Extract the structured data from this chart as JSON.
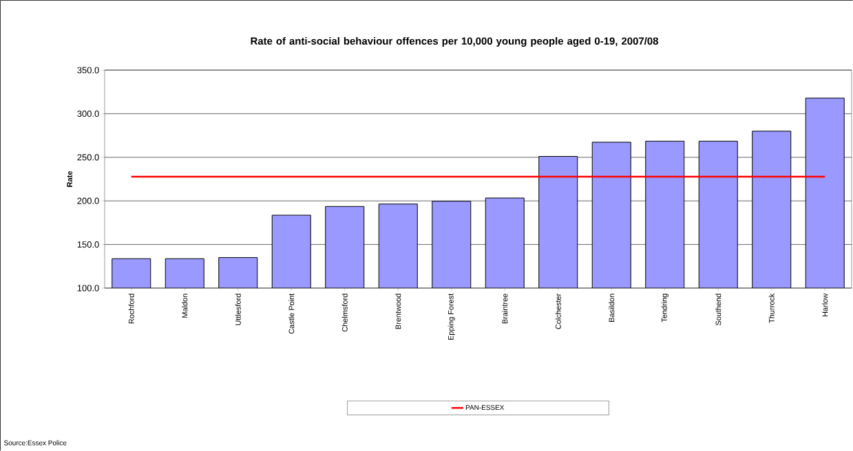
{
  "chart_data": {
    "type": "bar",
    "title": "Rate of anti-social behaviour offences per 10,000 young people aged 0-19, 2007/08",
    "ylabel": "Rate",
    "categories": [
      "Rochford",
      "Maldon",
      "Uttlesford",
      "Castle Point",
      "Chelmsford",
      "Brentwood",
      "Epping Forest",
      "Braintree",
      "Colchester",
      "Basildon",
      "Tendring",
      "Southend",
      "Thurrock",
      "Harlow"
    ],
    "series": [
      {
        "color": "#9999ff",
        "values": [
          133.7,
          133.7,
          135.0,
          183.6,
          193.6,
          196.4,
          199.6,
          203.3,
          251.0,
          267.3,
          268.5,
          268.5,
          280.0,
          317.9
        ]
      },
      {
        "name": "PAN-ESSEX",
        "type": "line",
        "color": "#ff0000",
        "values": [
          227.7,
          227.7,
          227.7,
          227.7,
          227.7,
          227.7,
          227.7,
          227.7,
          227.7,
          227.7,
          227.7,
          227.7,
          227.7,
          227.7
        ]
      }
    ],
    "ylim": [
      100,
      350
    ],
    "yticks": [
      {
        "value": 100,
        "label": "100.0"
      },
      {
        "value": 150,
        "label": "150.0"
      },
      {
        "value": 200,
        "label": "200.0"
      },
      {
        "value": 250,
        "label": "250.0"
      },
      {
        "value": 300,
        "label": "300.0"
      },
      {
        "value": 350,
        "label": "350.0"
      }
    ],
    "grid": "y",
    "legend": "bottom",
    "annotations": [
      "Source:Essex Police"
    ]
  }
}
